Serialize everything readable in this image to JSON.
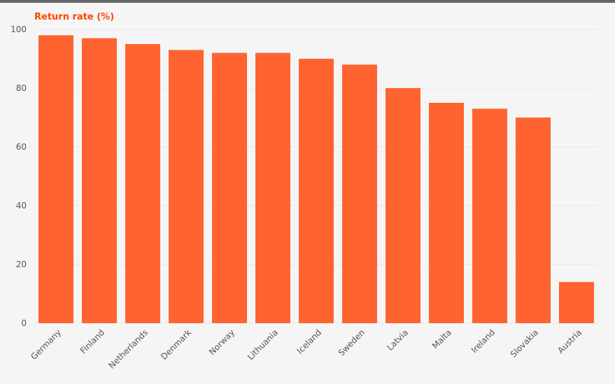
{
  "chart_data": {
    "type": "bar",
    "ylabel": "Return rate (%)",
    "categories": [
      "Germany",
      "Finland",
      "Netherlands",
      "Denmark",
      "Norway",
      "Lithuania",
      "Iceland",
      "Sweden",
      "Latvia",
      "Malta",
      "Ireland",
      "Slovakia",
      "Austria"
    ],
    "values": [
      98,
      97,
      95,
      93,
      92,
      92,
      90,
      88,
      80,
      75,
      73,
      70,
      14
    ],
    "ylim": [
      0,
      100
    ],
    "yticks": [
      0,
      20,
      40,
      60,
      80,
      100
    ],
    "grid": true,
    "legend": "none",
    "colors": {
      "bar": "#ff6430",
      "title": "#ff4400",
      "background": "#f5f5f5"
    }
  }
}
